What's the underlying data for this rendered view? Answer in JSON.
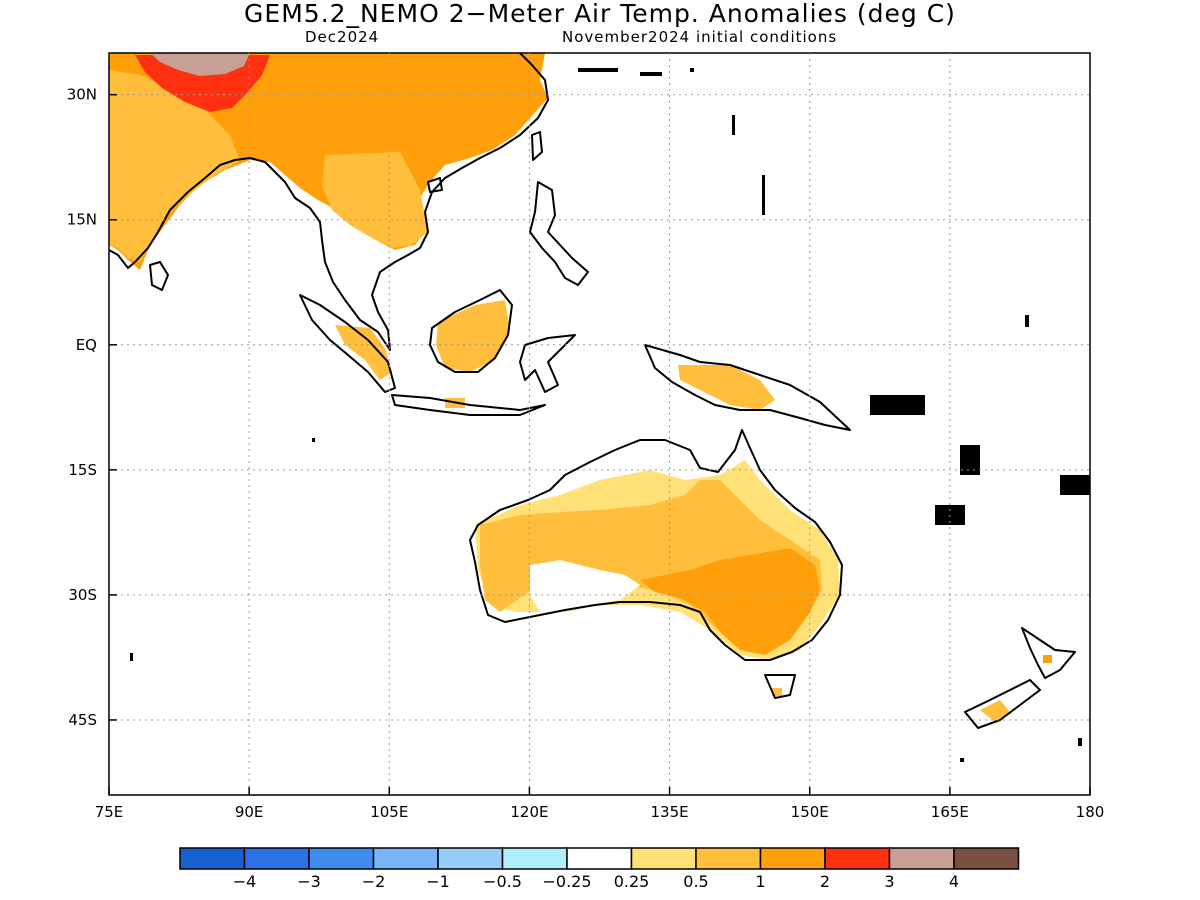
{
  "title": "GEM5.2_NEMO 2−Meter Air Temp. Anomalies (deg C)",
  "subtitle_left": "Dec2024",
  "subtitle_right": "November2024 initial conditions",
  "map": {
    "lon_range": [
      75,
      180
    ],
    "lat_range": [
      -54,
      35
    ],
    "x_ticks": [
      {
        "value": 75,
        "label": "75E"
      },
      {
        "value": 90,
        "label": "90E"
      },
      {
        "value": 105,
        "label": "105E"
      },
      {
        "value": 120,
        "label": "120E"
      },
      {
        "value": 135,
        "label": "135E"
      },
      {
        "value": 150,
        "label": "150E"
      },
      {
        "value": 165,
        "label": "165E"
      },
      {
        "value": 180,
        "label": "180"
      }
    ],
    "y_ticks": [
      {
        "value": 30,
        "label": "30N"
      },
      {
        "value": 15,
        "label": "15N"
      },
      {
        "value": 0,
        "label": "EQ"
      },
      {
        "value": -15,
        "label": "15S"
      },
      {
        "value": -30,
        "label": "30S"
      },
      {
        "value": -45,
        "label": "45S"
      }
    ],
    "grid": true
  },
  "colorbar": {
    "colors": [
      "#1660d0",
      "#2a72e6",
      "#3e8ef0",
      "#78b4f8",
      "#96ccf8",
      "#b0eefa",
      "#ffffff",
      "#ffe178",
      "#ffbe3c",
      "#ffa00a",
      "#ff3010",
      "#c8a096",
      "#7a5040"
    ],
    "labels": [
      "−4",
      "−3",
      "−2",
      "−1",
      "−0.5",
      "−0.25",
      "0.25",
      "0.5",
      "1",
      "2",
      "3",
      "4"
    ]
  }
}
